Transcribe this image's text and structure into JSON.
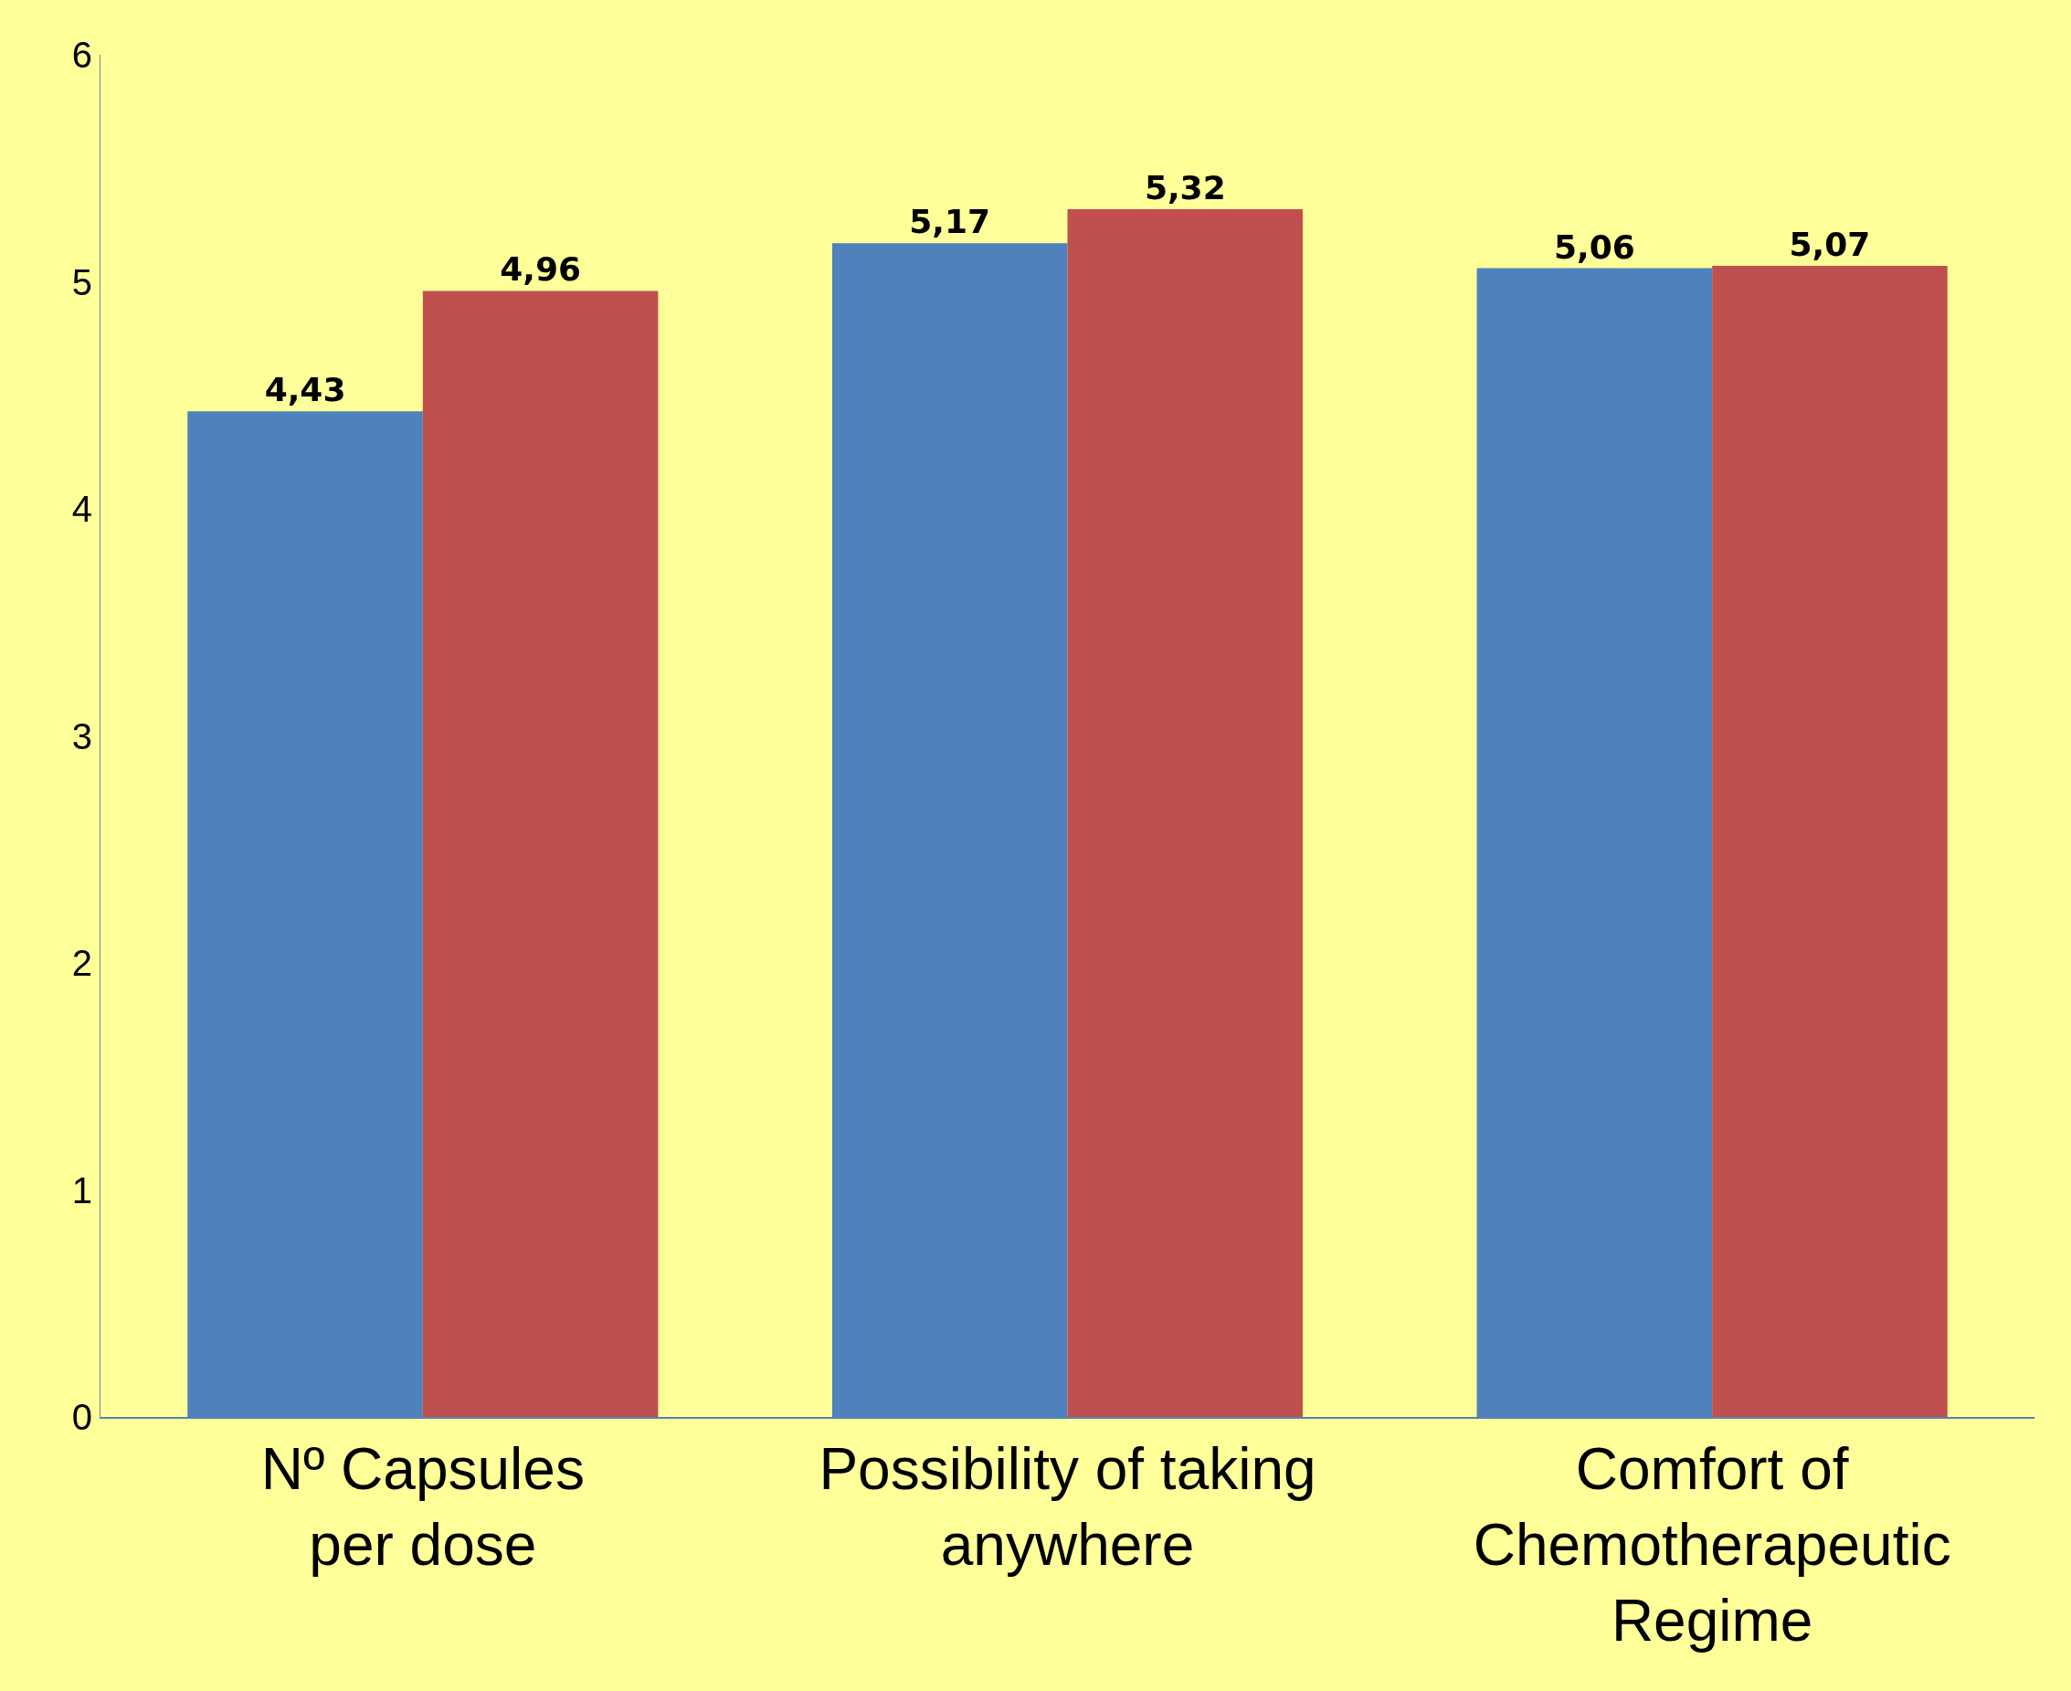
{
  "chart_data": {
    "type": "bar",
    "categories": [
      "Nº Capsules\nper dose",
      "Possibility of taking\nanywhere",
      "Comfort of\nChemotherapeutic\nRegime"
    ],
    "series": [
      {
        "color": "#4f81bd",
        "values": [
          4.43,
          5.17,
          5.06
        ],
        "value_labels": [
          "4,43",
          "5,17",
          "5,06"
        ]
      },
      {
        "color": "#c0504d",
        "values": [
          4.96,
          5.32,
          5.07
        ],
        "value_labels": [
          "4,96",
          "5,32",
          "5,07"
        ]
      }
    ],
    "ylim": [
      0,
      6
    ],
    "yticks": [
      0,
      1,
      2,
      3,
      4,
      5,
      6
    ],
    "grid": false
  }
}
